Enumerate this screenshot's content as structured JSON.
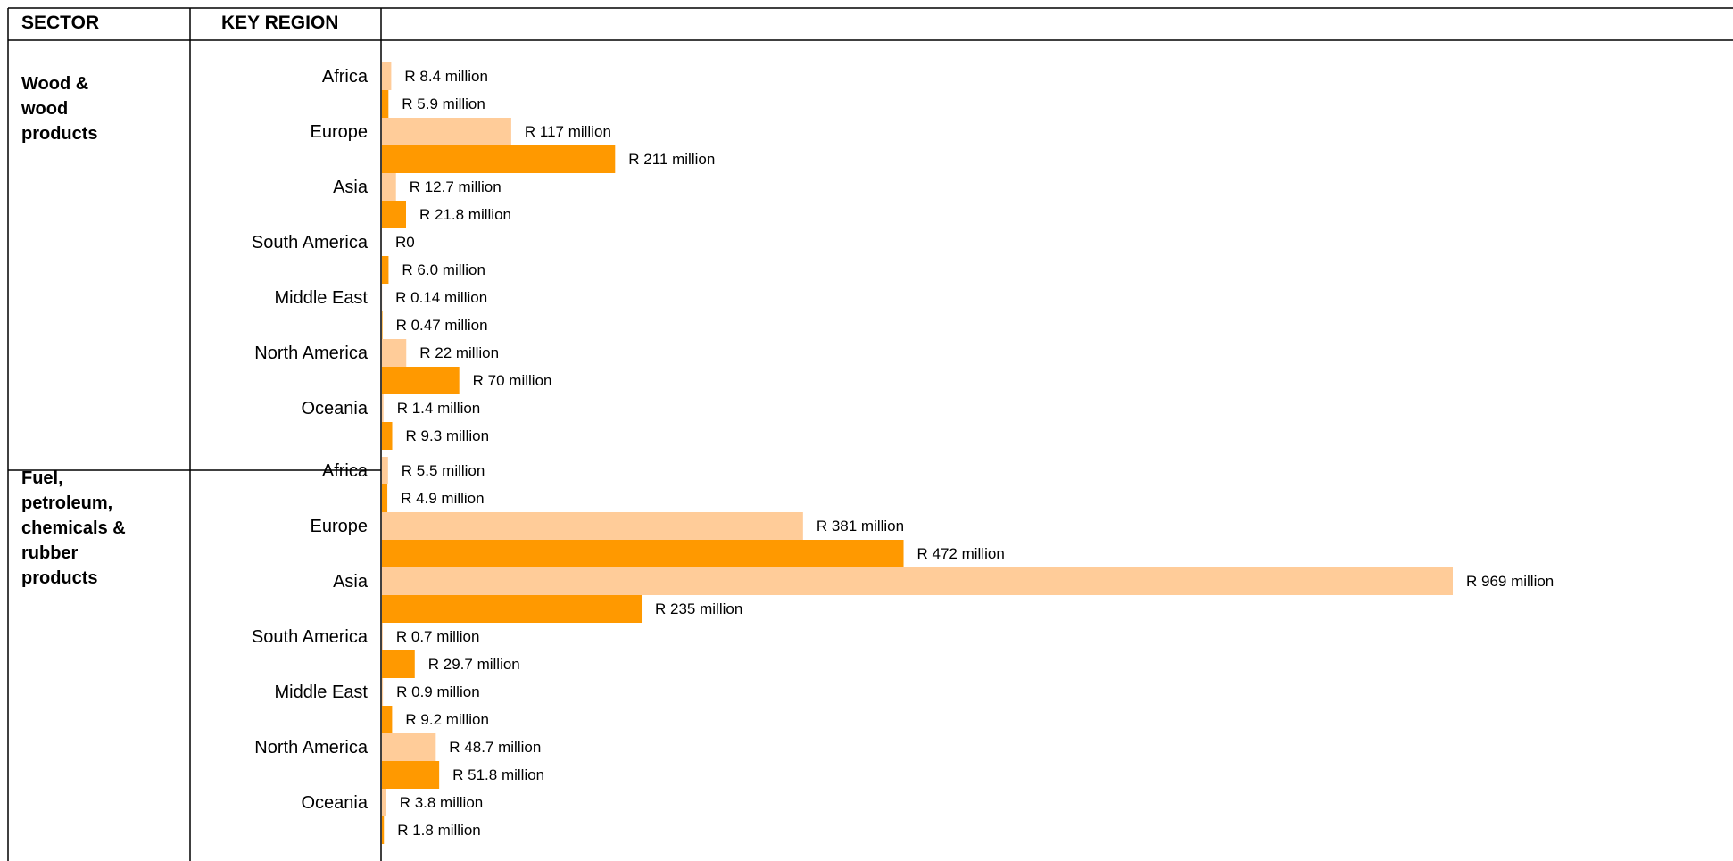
{
  "header": {
    "sector": "SECTOR",
    "region": "KEY REGION"
  },
  "colors": {
    "light": "#FFCC99",
    "dark": "#FF9900",
    "grid": "#000000"
  },
  "chart_data": {
    "type": "bar",
    "orientation": "horizontal",
    "title": "",
    "grid": false,
    "legend": "none",
    "sectors": [
      {
        "name": [
          "Wood &",
          "wood",
          "products"
        ],
        "regions": [
          "Africa",
          "Europe",
          "Asia",
          "South America",
          "Middle East",
          "North America",
          "Oceania"
        ],
        "series": [
          {
            "color": "light",
            "values": [
              8.4,
              117,
              12.7,
              0,
              0.14,
              22,
              1.4
            ],
            "labels": [
              "R 8.4 million",
              "R 117 million",
              "R 12.7 million",
              "R0",
              "R 0.14 million",
              "R 22 million",
              "R 1.4 million"
            ]
          },
          {
            "color": "dark",
            "values": [
              5.9,
              211,
              21.8,
              6.0,
              0.47,
              70,
              9.3
            ],
            "labels": [
              "R 5.9 million",
              "R 211 million",
              "R 21.8 million",
              "R 6.0 million",
              "R 0.47 million",
              "R 70 million",
              "R 9.3 million"
            ]
          }
        ]
      },
      {
        "name": [
          "Fuel,",
          "petroleum,",
          "chemicals &",
          "rubber",
          "products"
        ],
        "regions": [
          "Africa",
          "Europe",
          "Asia",
          "South America",
          "Middle East",
          "North America",
          "Oceania"
        ],
        "series": [
          {
            "color": "light",
            "values": [
              5.5,
              381,
              969,
              0.7,
              0.9,
              48.7,
              3.8
            ],
            "labels": [
              "R 5.5 million",
              "R 381 million",
              "R 969 million",
              "R 0.7 million",
              "R 0.9 million",
              "R 48.7 million",
              "R 3.8 million"
            ]
          },
          {
            "color": "dark",
            "values": [
              4.9,
              472,
              235,
              29.7,
              9.2,
              51.8,
              1.8
            ],
            "labels": [
              "R 4.9 million",
              "R 472 million",
              "R 235 million",
              "R 29.7 million",
              "R 9.2 million",
              "R 51.8 million",
              "R 1.8 million"
            ]
          }
        ]
      }
    ]
  }
}
